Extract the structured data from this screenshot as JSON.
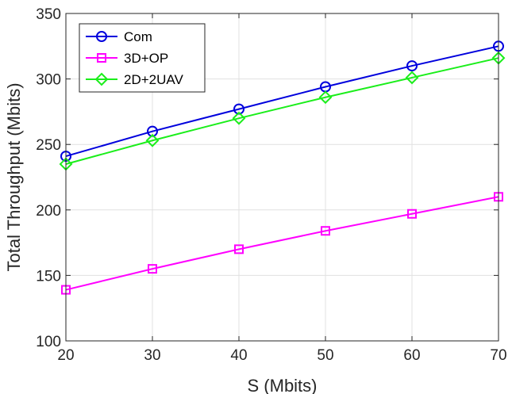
{
  "chart_data": {
    "type": "line",
    "title": "",
    "xlabel": "S (Mbits)",
    "ylabel": "Total Throughput (Mbits)",
    "x": [
      20,
      30,
      40,
      50,
      60,
      70
    ],
    "xlim": [
      20,
      70
    ],
    "ylim": [
      100,
      350
    ],
    "xticks": [
      20,
      30,
      40,
      50,
      60,
      70
    ],
    "yticks": [
      100,
      150,
      200,
      250,
      300,
      350
    ],
    "grid": true,
    "legend_position": "top-left",
    "series": [
      {
        "name": "Com",
        "color": "#0000dd",
        "marker": "circle",
        "values": [
          241,
          260,
          277,
          294,
          310,
          325
        ]
      },
      {
        "name": "3D+OP",
        "color": "#ff00ff",
        "marker": "square",
        "values": [
          139,
          155,
          170,
          184,
          197,
          210
        ]
      },
      {
        "name": "2D+2UAV",
        "color": "#1aee1a",
        "marker": "diamond",
        "values": [
          235,
          253,
          270,
          286,
          301,
          316
        ]
      }
    ]
  }
}
